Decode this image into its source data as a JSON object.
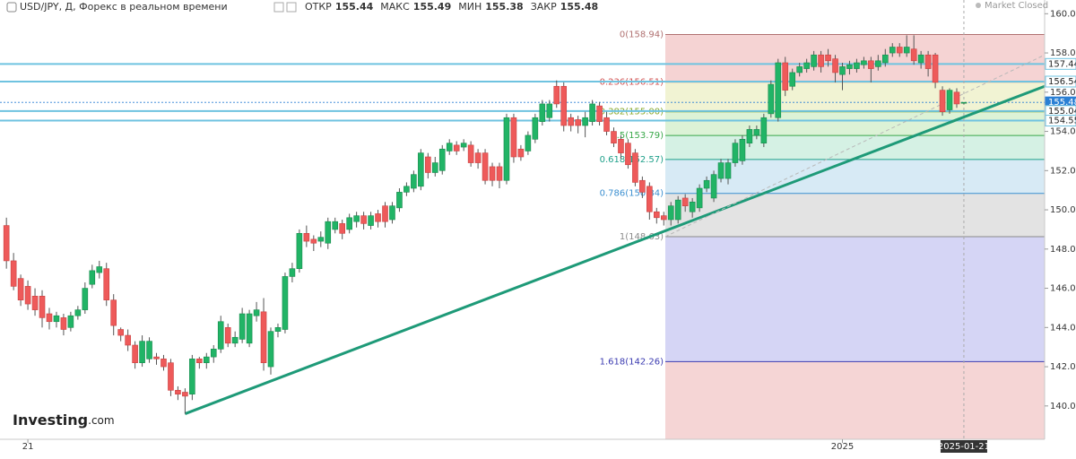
{
  "chart_data": {
    "type": "candlestick",
    "symbol": "USD/JPY, Д, Форекс в реальном времени",
    "ohlc_labels": [
      {
        "label": "ОТКР",
        "value": 155.44
      },
      {
        "label": "МАКС",
        "value": 155.49
      },
      {
        "label": "МИН",
        "value": 155.38
      },
      {
        "label": "ЗАКР",
        "value": 155.48
      }
    ],
    "status": "Market Closed",
    "logo": {
      "name": "Investing",
      "suffix": ".com"
    },
    "up_color": "#21b466",
    "down_color": "#ee5a5a",
    "xlim": [
      -0.9,
      145.3
    ],
    "ylim": [
      138.3,
      160.7
    ],
    "xticks": [
      {
        "value": 3,
        "label": "21"
      },
      {
        "value": 117,
        "label": "2025"
      }
    ],
    "crosshair": {
      "value": 134,
      "label": "2025-01-21"
    },
    "yticks": [
      {
        "value": 140,
        "label": "140.00"
      },
      {
        "value": 142,
        "label": "142.00"
      },
      {
        "value": 144,
        "label": "144.00"
      },
      {
        "value": 146,
        "label": "146.00"
      },
      {
        "value": 148,
        "label": "148.00"
      },
      {
        "value": 150,
        "label": "150.00"
      },
      {
        "value": 152,
        "label": "152.00"
      },
      {
        "value": 154,
        "label": "154.00"
      },
      {
        "value": 156,
        "label": "156.00"
      },
      {
        "value": 158,
        "label": "158.00"
      },
      {
        "value": 160,
        "label": "160.00"
      }
    ],
    "price_lines": [
      {
        "value": 157.44,
        "color": "#6fc3e0"
      },
      {
        "value": 156.54,
        "color": "#6fc3e0"
      },
      {
        "value": 155.48,
        "color": "#2a7fd4"
      },
      {
        "value": 155.04,
        "color": "#6fc3e0"
      },
      {
        "value": 154.55,
        "color": "#6fc3e0"
      }
    ],
    "fib_levels": [
      {
        "label": "0(158.94)",
        "value": 158.94,
        "color": "#b07070",
        "fill": "#f5d3d3"
      },
      {
        "label": "0.236(156.51)",
        "value": 156.51,
        "color": "#d05050",
        "fill": "#f1f3d3"
      },
      {
        "label": "0.382(155.00)",
        "value": 155.0,
        "color": "#8aa82a",
        "fill": "#dcf2d6"
      },
      {
        "label": "0.5(153.79)",
        "value": 153.79,
        "color": "#3aa84a",
        "fill": "#d5f1e4"
      },
      {
        "label": "0.618(152.57)",
        "value": 152.57,
        "color": "#1fa08a",
        "fill": "#d7eaf5"
      },
      {
        "label": "0.786(150.84)",
        "value": 150.84,
        "color": "#3b8fd0",
        "fill": "#e3e3e3"
      },
      {
        "label": "1(148.63)",
        "value": 148.63,
        "color": "#8a8a8a",
        "fill": "#d5d5f5"
      },
      {
        "label": "1.618(142.26)",
        "value": 142.26,
        "color": "#3a3ab0",
        "fill": "#f5d5d5"
      }
    ],
    "trendlines": [
      {
        "x": [
          25,
          145.3
        ],
        "y": [
          139.6,
          156.3
        ],
        "color": "#1e9a78",
        "dashed": false
      },
      {
        "x": [
          92.2,
          145.3
        ],
        "y": [
          148.63,
          157.9
        ],
        "color": "#b8b8b8",
        "dashed": true
      }
    ],
    "open": [
      149.2,
      147.4,
      146.5,
      146.1,
      145.6,
      145.6,
      144.7,
      144.3,
      144.5,
      144.0,
      144.6,
      144.9,
      146.2,
      146.8,
      147.0,
      145.4,
      143.9,
      143.6,
      143.1,
      142.2,
      142.4,
      142.5,
      142.4,
      142.2,
      140.8,
      140.7,
      140.6,
      142.4,
      142.2,
      142.5,
      142.9,
      144.0,
      143.2,
      143.4,
      143.2,
      144.6,
      144.8,
      142.0,
      143.8,
      143.9,
      146.6,
      147.0,
      148.8,
      148.5,
      148.4,
      148.3,
      149.0,
      149.3,
      149.0,
      149.4,
      149.7,
      149.2,
      149.8,
      150.2,
      149.5,
      150.1,
      150.9,
      151.1,
      151.2,
      152.7,
      151.9,
      152.0,
      153.0,
      153.3,
      153.2,
      153.3,
      152.9,
      152.9,
      152.2,
      152.2,
      151.5,
      154.7,
      153.1,
      153.0,
      153.6,
      154.5,
      154.7,
      156.3,
      156.3,
      154.7,
      154.6,
      154.3,
      154.5,
      155.3,
      154.7,
      154.0,
      153.6,
      153.4,
      152.9,
      151.5,
      151.2,
      149.9,
      149.7,
      149.5,
      149.5,
      150.6,
      149.9,
      150.1,
      151.1,
      150.6,
      151.6,
      151.6,
      152.4,
      152.5,
      153.4,
      153.8,
      153.4,
      154.9,
      154.7,
      157.5,
      156.3,
      157.0,
      157.2,
      157.3,
      157.9,
      157.9,
      157.7,
      156.9,
      157.2,
      157.2,
      157.4,
      157.6,
      157.3,
      157.5,
      158.0,
      158.3,
      158.0,
      158.2,
      157.5,
      157.9,
      157.9,
      156.1,
      155.1,
      156.0,
      155.44
    ],
    "high": [
      149.6,
      147.8,
      146.7,
      146.4,
      146.0,
      145.9,
      145.0,
      144.8,
      144.7,
      144.8,
      145.1,
      146.3,
      147.2,
      147.4,
      147.3,
      145.7,
      144.0,
      143.9,
      143.3,
      143.6,
      143.5,
      142.7,
      142.6,
      142.4,
      141.0,
      140.9,
      142.6,
      142.5,
      142.7,
      143.1,
      144.6,
      144.2,
      143.8,
      145.0,
      144.9,
      145.3,
      145.5,
      144.0,
      144.2,
      146.8,
      147.3,
      149.0,
      149.2,
      148.7,
      148.9,
      149.6,
      149.6,
      149.5,
      149.8,
      149.9,
      149.9,
      149.9,
      150.0,
      150.4,
      150.4,
      151.1,
      151.4,
      152.0,
      153.1,
      152.9,
      152.7,
      153.3,
      153.6,
      153.5,
      153.6,
      153.5,
      153.1,
      153.1,
      152.4,
      152.4,
      154.9,
      154.9,
      153.3,
      154.0,
      154.9,
      155.6,
      155.6,
      156.6,
      156.5,
      154.9,
      154.8,
      155.0,
      155.6,
      155.5,
      155.0,
      154.2,
      153.8,
      153.6,
      153.1,
      151.7,
      151.4,
      150.1,
      149.9,
      150.4,
      150.7,
      150.8,
      150.6,
      151.3,
      151.7,
      152.0,
      152.6,
      152.6,
      153.6,
      153.8,
      154.3,
      154.3,
      154.9,
      156.6,
      157.7,
      157.8,
      157.2,
      157.5,
      157.7,
      158.1,
      158.1,
      158.2,
      157.9,
      157.5,
      157.6,
      157.7,
      157.8,
      157.8,
      157.9,
      158.2,
      158.5,
      158.5,
      158.9,
      158.9,
      158.1,
      158.1,
      158.0,
      156.3,
      156.2,
      156.2,
      155.49
    ],
    "low": [
      147.0,
      145.9,
      145.1,
      144.9,
      144.6,
      144.0,
      143.9,
      144.0,
      143.6,
      143.8,
      144.4,
      144.7,
      146.0,
      146.5,
      145.1,
      143.6,
      143.3,
      142.8,
      141.9,
      142.0,
      142.2,
      142.1,
      141.8,
      140.5,
      140.3,
      139.6,
      140.3,
      141.9,
      141.9,
      142.2,
      142.7,
      143.0,
      143.0,
      143.2,
      143.0,
      144.3,
      141.8,
      141.6,
      143.5,
      143.7,
      146.3,
      146.8,
      148.1,
      147.9,
      148.1,
      148.0,
      148.8,
      148.5,
      148.8,
      149.1,
      149.0,
      149.0,
      149.1,
      149.1,
      149.3,
      149.9,
      150.7,
      150.9,
      151.0,
      151.6,
      151.7,
      151.8,
      152.8,
      152.8,
      153.0,
      152.2,
      152.1,
      151.3,
      151.2,
      151.1,
      151.3,
      152.4,
      152.5,
      152.8,
      153.4,
      154.3,
      154.5,
      155.2,
      154.0,
      154.0,
      153.9,
      153.7,
      154.3,
      154.3,
      153.8,
      153.2,
      152.6,
      152.1,
      151.2,
      150.6,
      149.5,
      149.3,
      149.2,
      149.2,
      149.3,
      149.9,
      149.6,
      149.9,
      150.9,
      150.4,
      151.4,
      151.3,
      152.2,
      152.3,
      153.2,
      153.6,
      153.2,
      154.7,
      154.5,
      155.8,
      156.1,
      156.8,
      157.0,
      157.1,
      157.0,
      157.3,
      156.5,
      156.1,
      156.9,
      157.0,
      157.2,
      156.5,
      157.1,
      157.3,
      157.8,
      157.8,
      157.8,
      157.4,
      157.2,
      156.8,
      156.2,
      154.8,
      154.9,
      155.2,
      155.38
    ],
    "close": [
      147.4,
      146.1,
      145.4,
      145.2,
      144.9,
      144.5,
      144.3,
      144.6,
      143.9,
      144.6,
      144.9,
      146.0,
      146.9,
      147.1,
      145.4,
      144.1,
      143.6,
      143.1,
      142.2,
      143.3,
      143.3,
      142.4,
      142.0,
      140.8,
      140.6,
      140.5,
      142.4,
      142.2,
      142.5,
      142.9,
      144.3,
      143.2,
      143.5,
      144.7,
      144.7,
      144.9,
      142.2,
      143.8,
      144.0,
      146.6,
      147.0,
      148.8,
      148.4,
      148.3,
      148.6,
      149.4,
      149.4,
      148.8,
      149.6,
      149.7,
      149.3,
      149.7,
      149.4,
      149.4,
      150.2,
      150.9,
      151.2,
      151.8,
      152.9,
      151.9,
      152.4,
      153.1,
      153.4,
      153.0,
      153.4,
      152.4,
      152.4,
      151.5,
      151.5,
      151.5,
      154.7,
      152.7,
      152.7,
      153.8,
      154.7,
      155.4,
      155.4,
      155.4,
      154.3,
      154.3,
      154.3,
      154.7,
      155.4,
      154.5,
      154.0,
      153.4,
      152.9,
      152.3,
      151.4,
      150.9,
      149.9,
      149.6,
      149.5,
      150.2,
      150.5,
      150.2,
      150.4,
      151.1,
      151.5,
      151.8,
      152.4,
      152.4,
      153.4,
      153.6,
      154.1,
      154.1,
      154.7,
      156.4,
      157.5,
      156.1,
      157.0,
      157.3,
      157.5,
      157.9,
      157.3,
      157.6,
      157.0,
      157.3,
      157.4,
      157.5,
      157.6,
      157.2,
      157.6,
      157.9,
      158.3,
      158.0,
      158.3,
      157.6,
      157.9,
      157.2,
      156.5,
      155.0,
      156.1,
      155.4,
      155.48
    ]
  }
}
